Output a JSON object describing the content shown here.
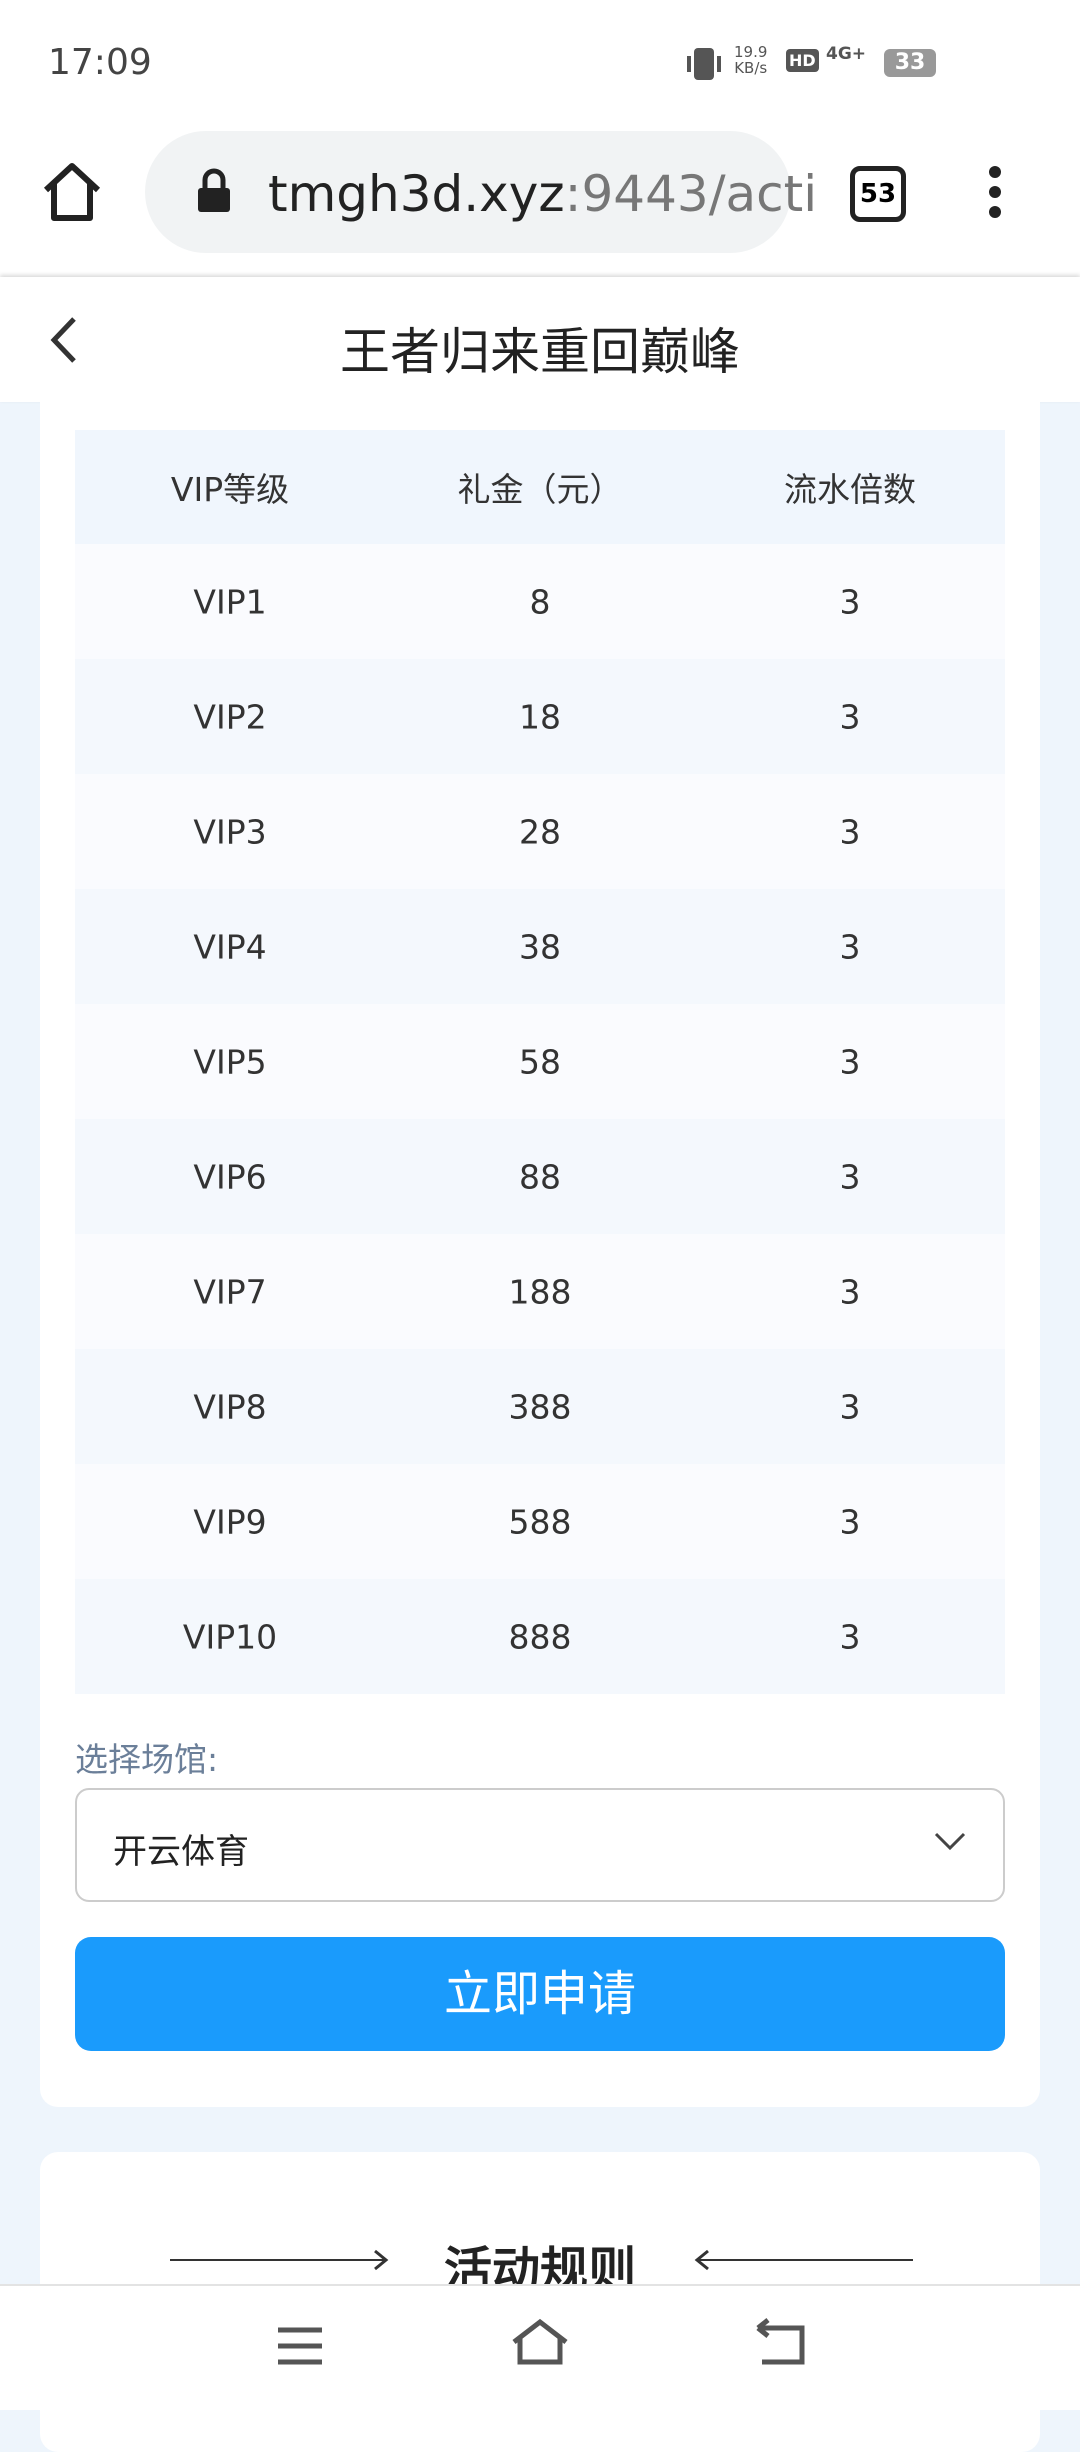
{
  "status": {
    "time": "17:09",
    "speed_value": "19.9",
    "speed_unit": "KB/s",
    "hd": "HD",
    "network": "4G+",
    "battery": "33"
  },
  "browser": {
    "url_host": "tmgh3d.xyz",
    "url_rest": ":9443/acti",
    "tabs": "53"
  },
  "header": {
    "title": "王者归来重回巅峰"
  },
  "table": {
    "columns": [
      "VIP等级",
      "礼金（元）",
      "流水倍数"
    ],
    "rows": [
      [
        "VIP1",
        "8",
        "3"
      ],
      [
        "VIP2",
        "18",
        "3"
      ],
      [
        "VIP3",
        "28",
        "3"
      ],
      [
        "VIP4",
        "38",
        "3"
      ],
      [
        "VIP5",
        "58",
        "3"
      ],
      [
        "VIP6",
        "88",
        "3"
      ],
      [
        "VIP7",
        "188",
        "3"
      ],
      [
        "VIP8",
        "388",
        "3"
      ],
      [
        "VIP9",
        "588",
        "3"
      ],
      [
        "VIP10",
        "888",
        "3"
      ]
    ]
  },
  "form": {
    "label": "选择场馆:",
    "selected": "开云体育",
    "button": "立即申请"
  },
  "rules": {
    "title": "活动规则"
  }
}
